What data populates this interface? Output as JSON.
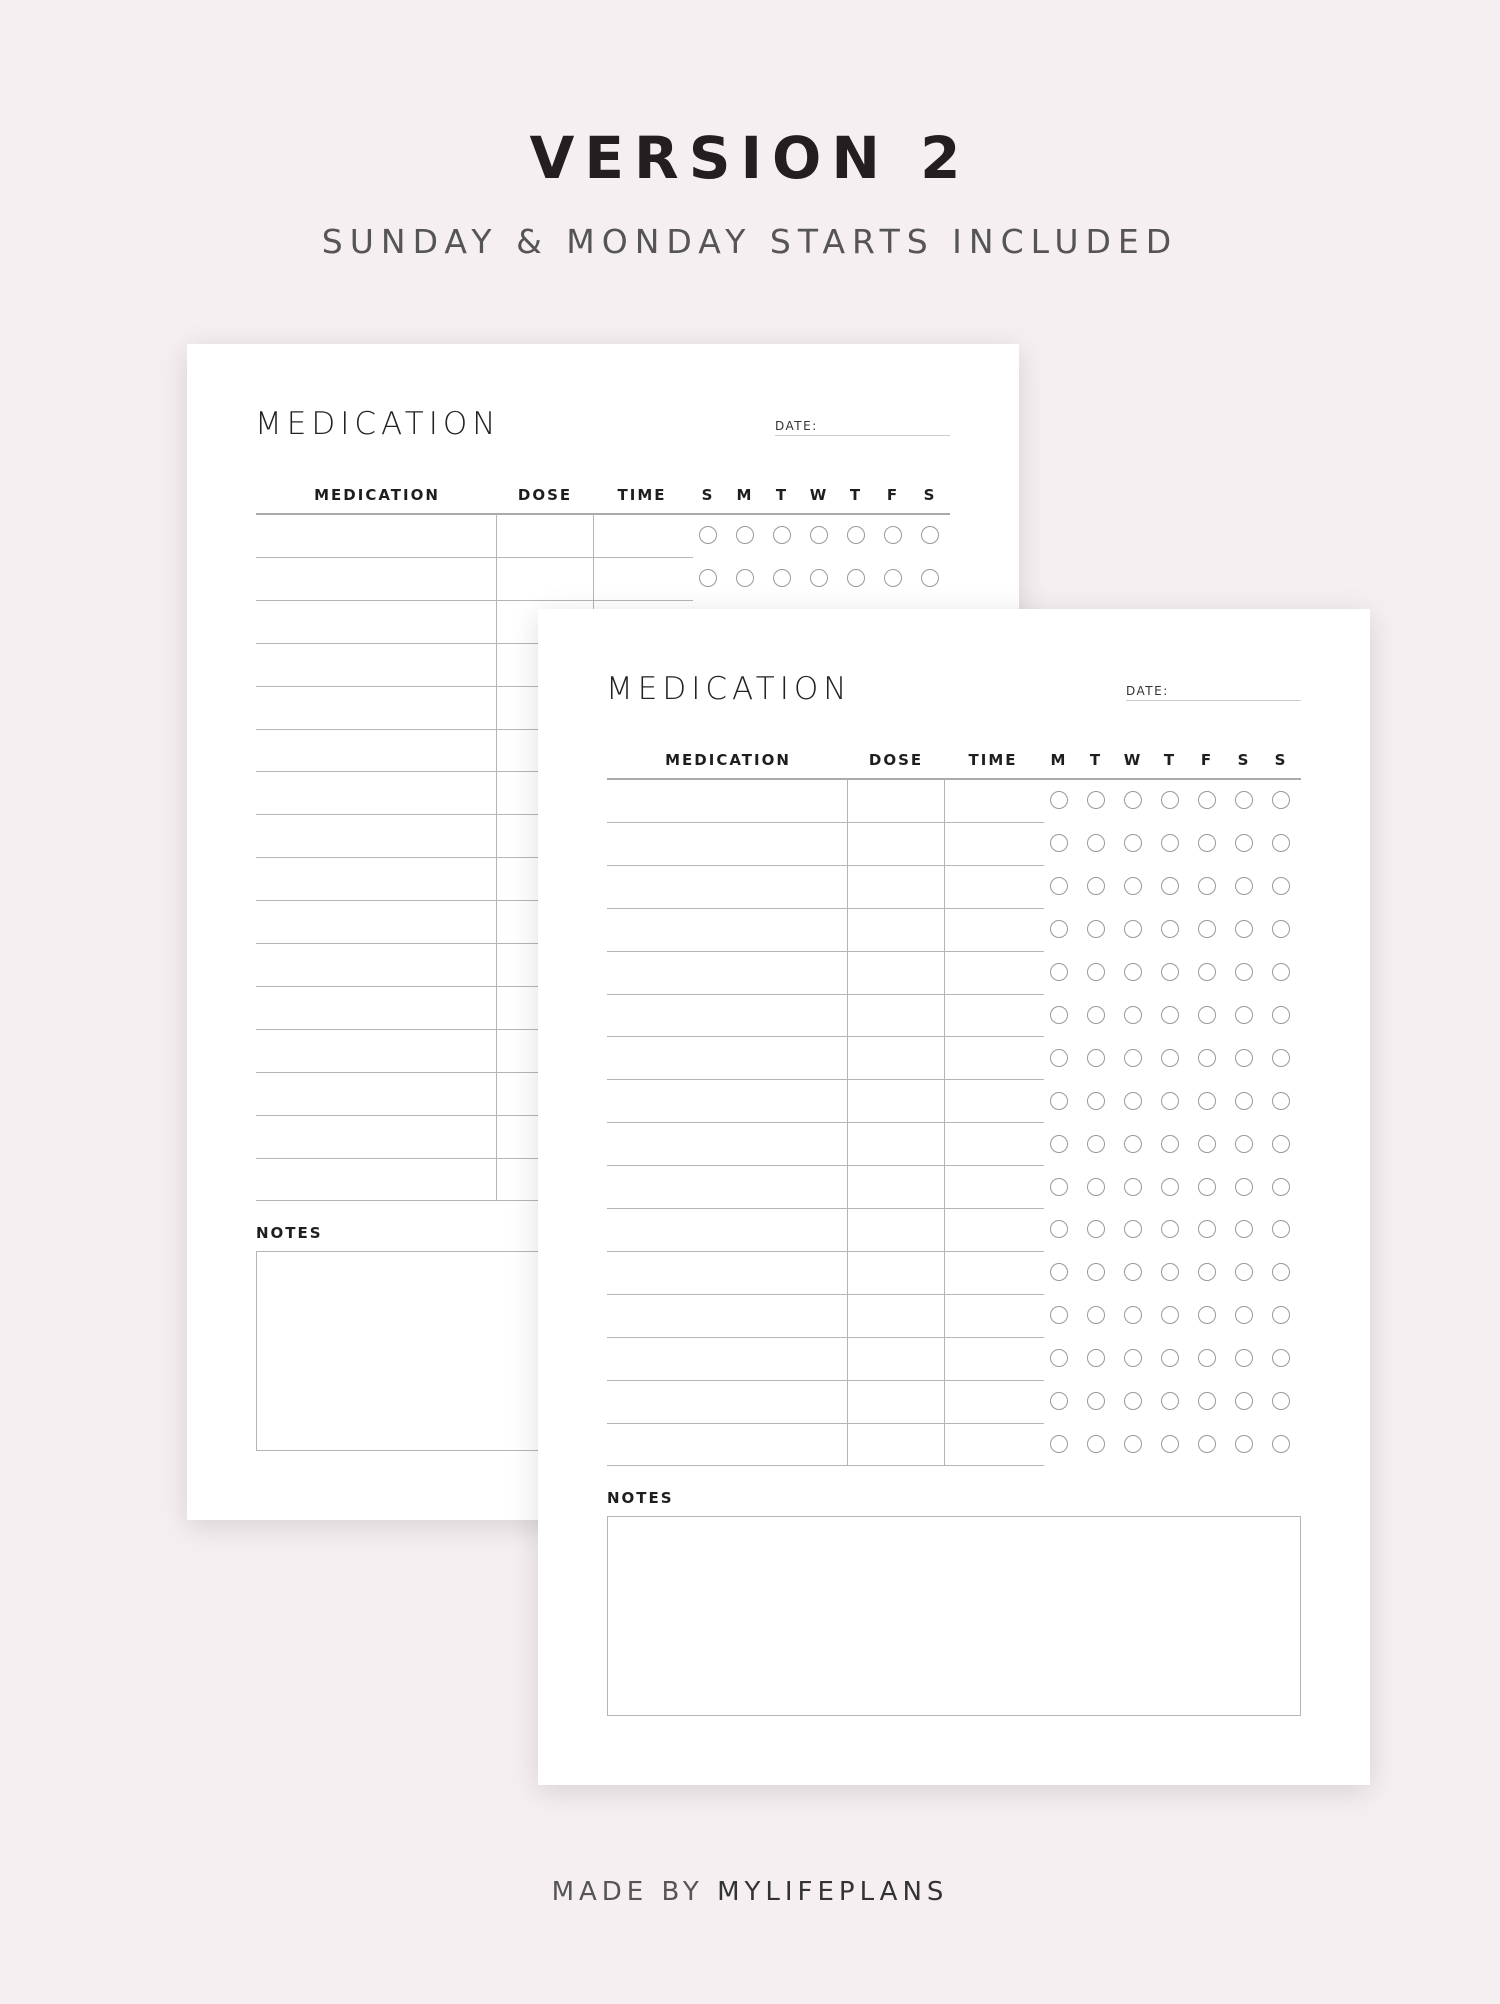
{
  "header": {
    "title": "VERSION 2",
    "subtitle": "SUNDAY & MONDAY STARTS INCLUDED"
  },
  "footer": {
    "prefix": "MADE BY",
    "brand": "MYLIFEPLANS"
  },
  "pages": [
    {
      "title": "MEDICATION",
      "date_label": "DATE:",
      "columns": [
        "MEDICATION",
        "DOSE",
        "TIME"
      ],
      "days": [
        "S",
        "M",
        "T",
        "W",
        "T",
        "F",
        "S"
      ],
      "notes_label": "NOTES"
    },
    {
      "title": "MEDICATION",
      "date_label": "DATE:",
      "columns": [
        "MEDICATION",
        "DOSE",
        "TIME"
      ],
      "days": [
        "M",
        "T",
        "W",
        "T",
        "F",
        "S",
        "S"
      ],
      "notes_label": "NOTES"
    }
  ],
  "colors": {
    "background": "#f5eff1",
    "page": "#ffffff",
    "lines": "#b5b5b5",
    "text": "#1e1e1e"
  }
}
